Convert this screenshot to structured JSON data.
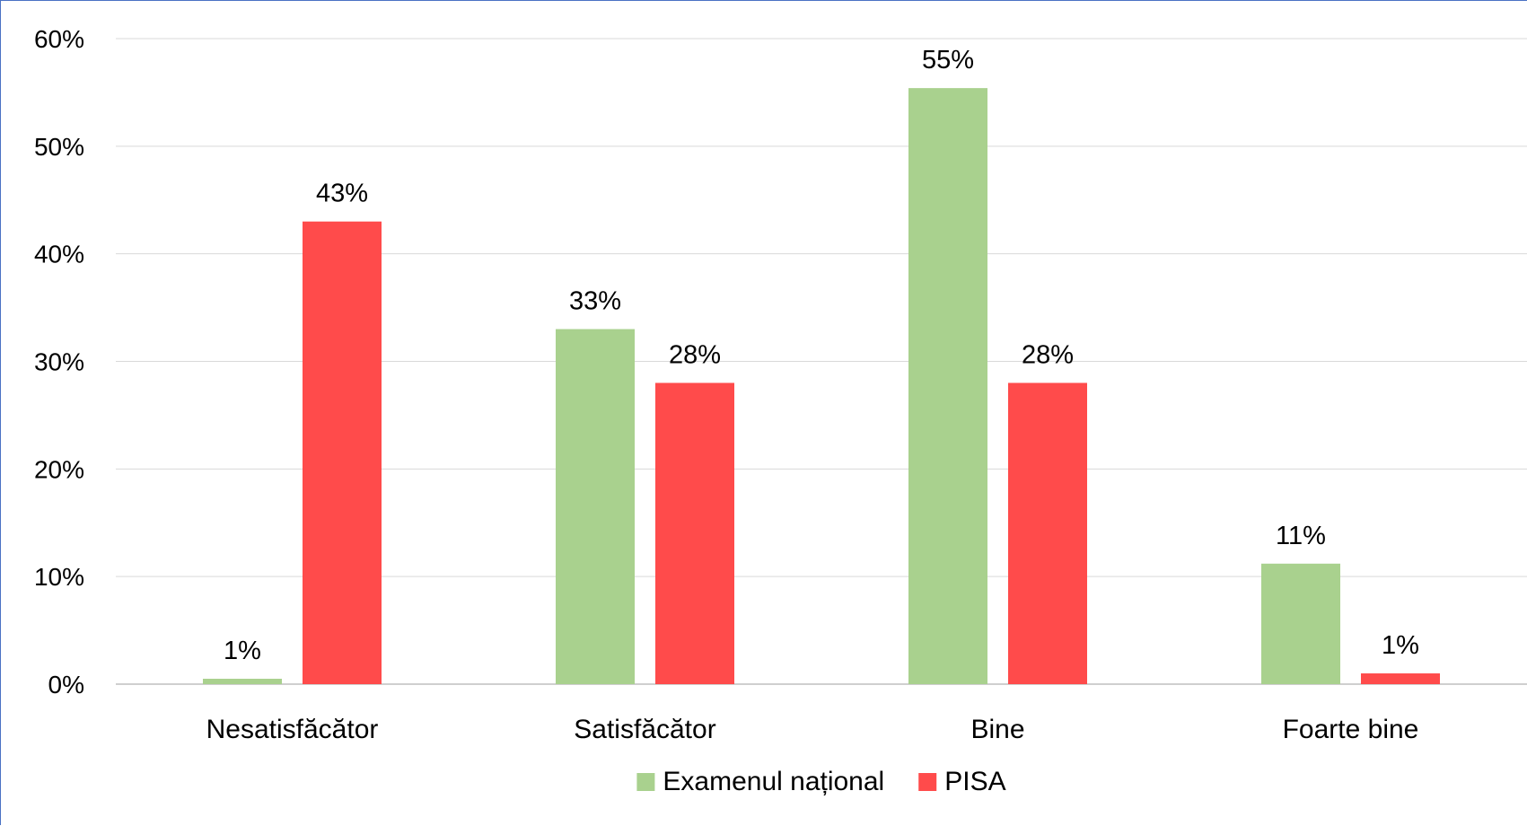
{
  "chart_data": {
    "type": "bar",
    "categories": [
      "Nesatisfăcător",
      "Satisfăcător",
      "Bine",
      "Foarte bine"
    ],
    "series": [
      {
        "name": "Examenul național",
        "color": "#a9d18e",
        "values": [
          0.5,
          33,
          55.4,
          11.2
        ],
        "labels": [
          "1%",
          "33%",
          "55%",
          "11%"
        ]
      },
      {
        "name": "PISA",
        "color": "#ff4b4b",
        "values": [
          43,
          28,
          28,
          1
        ],
        "labels": [
          "43%",
          "28%",
          "28%",
          "1%"
        ]
      }
    ],
    "ylim": [
      0,
      60
    ],
    "yticks": [
      0,
      10,
      20,
      30,
      40,
      50,
      60
    ],
    "ytick_labels": [
      "0%",
      "10%",
      "20%",
      "30%",
      "40%",
      "50%",
      "60%"
    ],
    "grid": true,
    "legend_position": "bottom"
  }
}
